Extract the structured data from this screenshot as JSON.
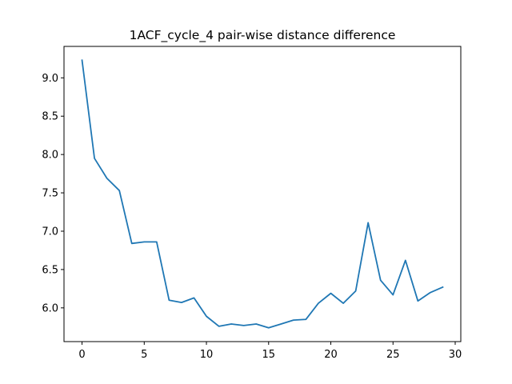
{
  "chart_data": {
    "type": "line",
    "title": "1ACF_cycle_4 pair-wise distance difference",
    "xlabel": "",
    "ylabel": "",
    "xlim": [
      -1.45,
      30.45
    ],
    "ylim": [
      5.56,
      9.41
    ],
    "xticks": [
      0,
      5,
      10,
      15,
      20,
      25,
      30
    ],
    "yticks": [
      6.0,
      6.5,
      7.0,
      7.5,
      8.0,
      8.5,
      9.0
    ],
    "ytick_labels": [
      "6.0",
      "6.5",
      "7.0",
      "7.5",
      "8.0",
      "8.5",
      "9.0"
    ],
    "grid": false,
    "legend": "none",
    "series": [
      {
        "color": "#1f77b4",
        "x": [
          0,
          1,
          2,
          3,
          4,
          5,
          6,
          7,
          8,
          9,
          10,
          11,
          12,
          13,
          14,
          15,
          16,
          17,
          18,
          19,
          20,
          21,
          22,
          23,
          24,
          25,
          26,
          27,
          28,
          29
        ],
        "y": [
          9.23,
          7.95,
          7.69,
          7.53,
          6.84,
          6.86,
          6.86,
          6.1,
          6.07,
          6.13,
          5.89,
          5.76,
          5.79,
          5.77,
          5.79,
          5.74,
          5.79,
          5.84,
          5.85,
          6.06,
          6.19,
          6.06,
          6.22,
          7.11,
          6.36,
          6.17,
          6.62,
          6.09,
          6.2,
          6.27
        ]
      }
    ]
  }
}
